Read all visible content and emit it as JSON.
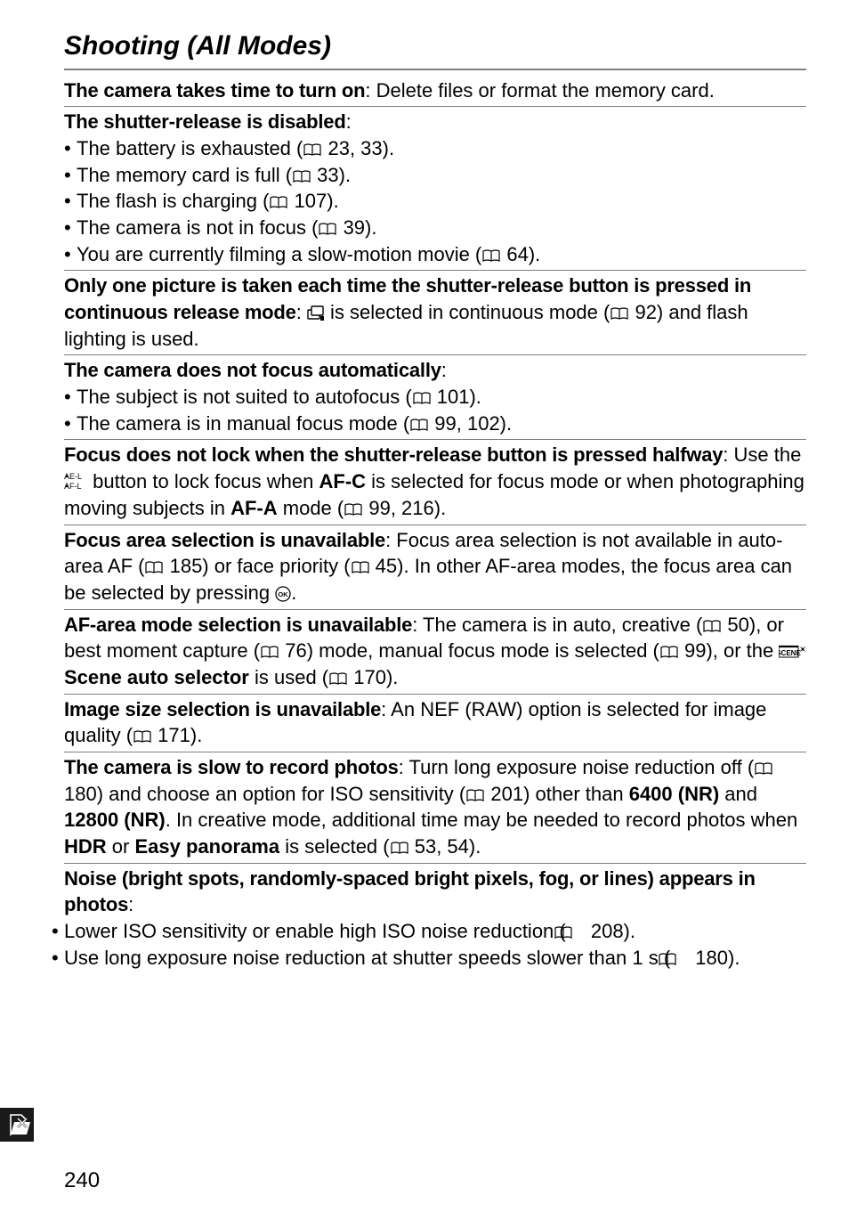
{
  "title": "Shooting (All Modes)",
  "entries": [
    {
      "lead": "The camera takes time to turn on",
      "inline": ": Delete files or format the memory card."
    },
    {
      "lead": "The shutter-release is disabled",
      "inline": ":",
      "bullets": [
        "The battery is exhausted ({book} 23, 33).",
        "The memory card is full ({book} 33).",
        "The flash is charging ({book} 107).",
        "The camera is not in focus ({book} 39).",
        "You are currently filming a slow-motion movie ({book} 64)."
      ]
    },
    {
      "lead": "Only one picture is taken each time the shutter-release button is pressed in continuous release mode",
      "inline": ": {burst} is selected in continuous mode ({book} 92) and flash lighting is used."
    },
    {
      "lead": "The camera does not focus automatically",
      "inline": ":",
      "bullets": [
        "The subject is not suited to autofocus ({book} 101).",
        "The camera is in manual focus mode ({book} 99, 102)."
      ]
    },
    {
      "lead": "Focus does not lock when the shutter-release button is pressed halfway",
      "inline": ": Use the {ael} button to lock focus when {b}AF-C{/b} is selected for focus mode or when photographing moving subjects in {b}AF-A{/b} mode ({book} 99, 216)."
    },
    {
      "lead": "Focus area selection is unavailable",
      "inline": ": Focus area selection is not available in auto-area AF ({book} 185) or face priority ({book} 45). In other AF-area modes, the focus area can be selected by pressing {ok}."
    },
    {
      "lead": "AF-area mode selection is unavailable",
      "inline": ": The camera is in auto, creative ({book} 50), or best moment capture ({book} 76) mode, manual focus mode is selected ({book} 99), or the {scene} {b}Scene auto selector{/b} is used ({book} 170)."
    },
    {
      "lead": "Image size selection is unavailable",
      "inline": ": An NEF (RAW) option is selected for image quality ({book} 171)."
    },
    {
      "lead": "The camera is slow to record photos",
      "inline": ": Turn long exposure noise reduction off ({book} 180) and choose an option for ISO sensitivity ({book} 201) other than {b}6400 (NR){/b} and {b}12800 (NR){/b}. In creative mode, additional time may be needed to record photos when {b}HDR{/b} or {b}Easy panorama{/b} is selected ({book} 53, 54)."
    },
    {
      "lead": "Noise (bright spots, randomly-spaced bright pixels, fog, or lines) appears in photos",
      "inline": ":",
      "bullets_hang": [
        "Lower ISO sensitivity or enable high ISO noise reduction ({book} 208).",
        "Use long exposure noise reduction at shutter speeds slower than 1 s ({book} 180)."
      ]
    }
  ],
  "page_number": "240",
  "colors": {
    "text": "#000000",
    "rule": "#7f7f7f",
    "tab_bg": "#1a1a1a",
    "tab_fg": "#ffffff"
  }
}
